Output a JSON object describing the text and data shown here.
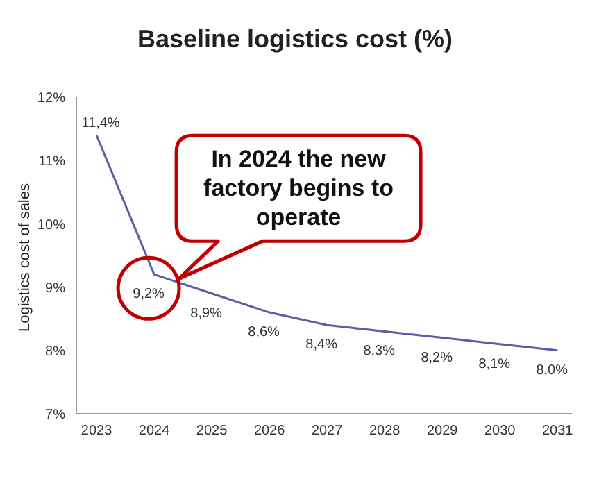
{
  "chart_data": {
    "type": "line",
    "title": "Baseline logistics cost (%)",
    "ylabel": "Logistics cost of sales",
    "categories": [
      "2023",
      "2024",
      "2025",
      "2026",
      "2027",
      "2028",
      "2029",
      "2030",
      "2031"
    ],
    "series": [
      {
        "color": "#5b5ea6",
        "values": [
          11.4,
          9.2,
          8.9,
          8.6,
          8.4,
          8.3,
          8.2,
          8.1,
          8.0
        ],
        "value_labels": [
          "11,4%",
          "9,2%",
          "8,9%",
          "8,6%",
          "8,4%",
          "8,3%",
          "8,2%",
          "8,1%",
          "8,0%"
        ]
      }
    ],
    "ylim": [
      7,
      12
    ],
    "yticks": [
      {
        "value": 7,
        "label": "7%"
      },
      {
        "value": 8,
        "label": "8%"
      },
      {
        "value": 9,
        "label": "9%"
      },
      {
        "value": 10,
        "label": "10%"
      },
      {
        "value": 11,
        "label": "11%"
      },
      {
        "value": 12,
        "label": "12%"
      }
    ],
    "marker": "none",
    "grid": false,
    "legend": false,
    "annotations": [
      {
        "text": "In 2024 the new factory begins to operate",
        "x": "2024",
        "y": 9.2
      }
    ]
  }
}
